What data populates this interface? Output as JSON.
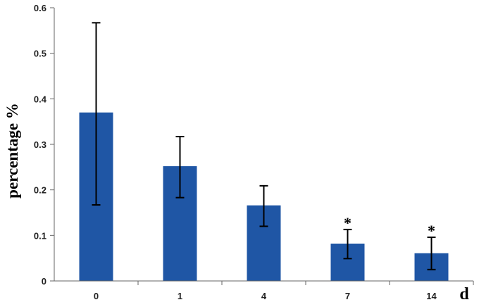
{
  "chart_data": {
    "type": "bar",
    "title": "",
    "categories": [
      "0",
      "1",
      "4",
      "7",
      "14"
    ],
    "values": [
      0.37,
      0.252,
      0.166,
      0.082,
      0.061
    ],
    "error_upper": [
      0.567,
      0.317,
      0.209,
      0.113,
      0.096
    ],
    "error_lower": [
      0.167,
      0.183,
      0.12,
      0.049,
      0.025
    ],
    "annotations": [
      "",
      "",
      "",
      "*",
      "*"
    ],
    "xlabel": "d",
    "ylabel": "percentage %",
    "ylim": [
      0,
      0.6
    ],
    "yticks": [
      0,
      0.1,
      0.2,
      0.3,
      0.4,
      0.5,
      0.6
    ],
    "ytick_labels": [
      "0",
      "0.1",
      "0.2",
      "0.3",
      "0.4",
      "0.5",
      "0.6"
    ],
    "grid": false,
    "bar_color": "#1f56a5",
    "error_bar_color": "#000000"
  }
}
